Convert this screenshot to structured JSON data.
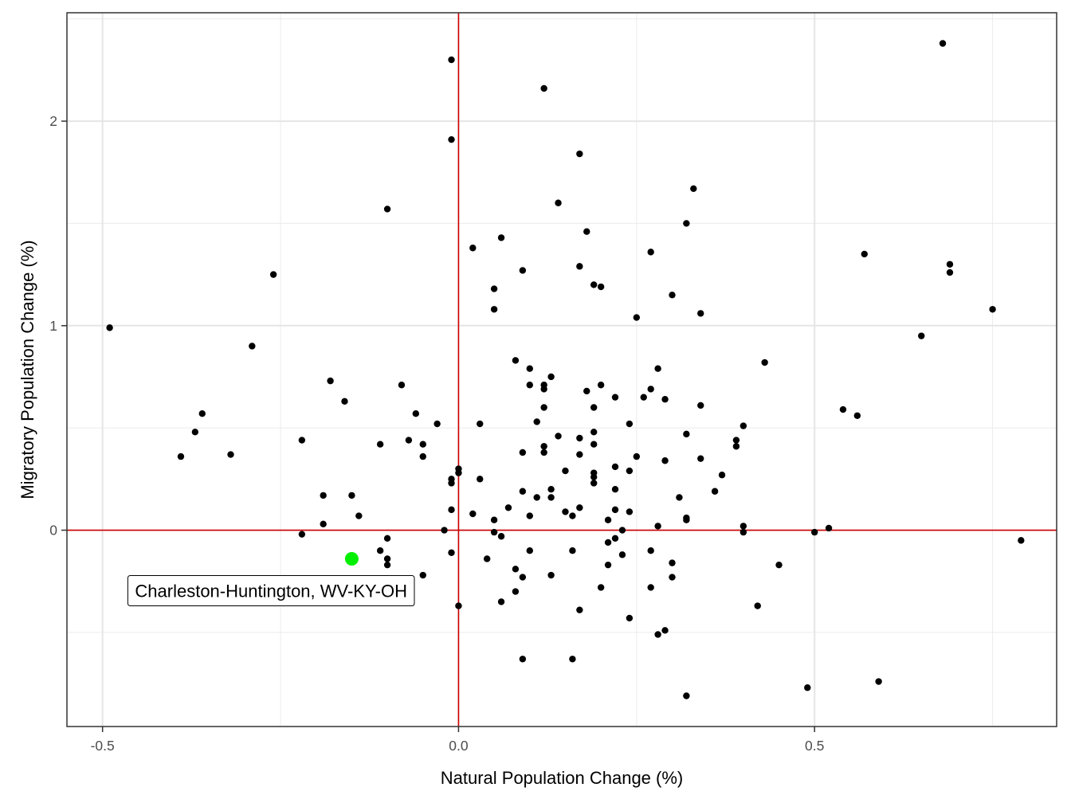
{
  "chart_data": {
    "type": "scatter",
    "xlabel": "Natural Population Change (%)",
    "ylabel": "Migratory Population Change (%)",
    "xlim": [
      -0.55,
      0.84
    ],
    "ylim": [
      -0.96,
      2.53
    ],
    "x_ticks": [
      -0.5,
      0.0,
      0.5
    ],
    "x_tick_labels": [
      "-0.5",
      "0.0",
      "0.5"
    ],
    "y_ticks": [
      0,
      1,
      2
    ],
    "y_tick_labels": [
      "0",
      "1",
      "2"
    ],
    "grid": true,
    "reference_lines": {
      "x": 0,
      "y": 0,
      "color": "#cc0000"
    },
    "point_color": "#000000",
    "highlight": {
      "label": "Charleston-Huntington, WV-KY-OH",
      "x": -0.15,
      "y": -0.14,
      "color": "#00ee00"
    },
    "points": [
      [
        -0.49,
        0.99
      ],
      [
        -0.39,
        0.36
      ],
      [
        -0.37,
        0.48
      ],
      [
        -0.36,
        0.57
      ],
      [
        -0.32,
        0.37
      ],
      [
        -0.29,
        0.9
      ],
      [
        -0.26,
        1.25
      ],
      [
        -0.22,
        0.44
      ],
      [
        -0.22,
        -0.02
      ],
      [
        -0.19,
        0.17
      ],
      [
        -0.19,
        0.03
      ],
      [
        -0.18,
        0.73
      ],
      [
        -0.16,
        0.63
      ],
      [
        -0.15,
        0.17
      ],
      [
        -0.14,
        0.07
      ],
      [
        -0.11,
        0.42
      ],
      [
        -0.11,
        -0.1
      ],
      [
        -0.1,
        -0.04
      ],
      [
        -0.1,
        -0.14
      ],
      [
        -0.1,
        -0.17
      ],
      [
        -0.1,
        1.57
      ],
      [
        -0.08,
        0.71
      ],
      [
        -0.07,
        0.44
      ],
      [
        -0.06,
        0.57
      ],
      [
        -0.05,
        0.42
      ],
      [
        -0.05,
        0.36
      ],
      [
        -0.05,
        -0.22
      ],
      [
        -0.03,
        0.52
      ],
      [
        -0.02,
        0.0
      ],
      [
        -0.01,
        0.25
      ],
      [
        -0.01,
        0.23
      ],
      [
        -0.01,
        0.1
      ],
      [
        -0.01,
        -0.11
      ],
      [
        -0.01,
        1.91
      ],
      [
        -0.01,
        2.3
      ],
      [
        0.0,
        0.3
      ],
      [
        0.0,
        0.28
      ],
      [
        0.0,
        -0.37
      ],
      [
        0.02,
        1.38
      ],
      [
        0.02,
        0.08
      ],
      [
        0.03,
        0.25
      ],
      [
        0.03,
        0.52
      ],
      [
        0.04,
        -0.14
      ],
      [
        0.05,
        1.18
      ],
      [
        0.05,
        1.08
      ],
      [
        0.05,
        0.05
      ],
      [
        0.05,
        -0.01
      ],
      [
        0.06,
        1.43
      ],
      [
        0.06,
        -0.03
      ],
      [
        0.06,
        -0.35
      ],
      [
        0.07,
        0.11
      ],
      [
        0.08,
        0.83
      ],
      [
        0.08,
        -0.19
      ],
      [
        0.08,
        -0.3
      ],
      [
        0.09,
        1.27
      ],
      [
        0.09,
        0.38
      ],
      [
        0.09,
        0.19
      ],
      [
        0.09,
        -0.23
      ],
      [
        0.09,
        -0.63
      ],
      [
        0.1,
        0.79
      ],
      [
        0.1,
        0.71
      ],
      [
        0.1,
        0.07
      ],
      [
        0.1,
        -0.1
      ],
      [
        0.11,
        0.53
      ],
      [
        0.11,
        0.16
      ],
      [
        0.12,
        2.16
      ],
      [
        0.12,
        0.71
      ],
      [
        0.12,
        0.69
      ],
      [
        0.12,
        0.6
      ],
      [
        0.12,
        0.41
      ],
      [
        0.12,
        0.38
      ],
      [
        0.13,
        0.75
      ],
      [
        0.13,
        0.2
      ],
      [
        0.13,
        0.16
      ],
      [
        0.13,
        -0.22
      ],
      [
        0.14,
        1.6
      ],
      [
        0.14,
        0.46
      ],
      [
        0.15,
        0.29
      ],
      [
        0.15,
        0.09
      ],
      [
        0.16,
        0.07
      ],
      [
        0.16,
        -0.1
      ],
      [
        0.16,
        -0.63
      ],
      [
        0.17,
        1.84
      ],
      [
        0.17,
        1.29
      ],
      [
        0.17,
        0.45
      ],
      [
        0.17,
        0.37
      ],
      [
        0.17,
        0.11
      ],
      [
        0.17,
        -0.39
      ],
      [
        0.18,
        1.46
      ],
      [
        0.18,
        0.68
      ],
      [
        0.19,
        1.2
      ],
      [
        0.19,
        0.6
      ],
      [
        0.19,
        0.48
      ],
      [
        0.19,
        0.42
      ],
      [
        0.19,
        0.28
      ],
      [
        0.19,
        0.26
      ],
      [
        0.19,
        0.23
      ],
      [
        0.2,
        1.19
      ],
      [
        0.2,
        0.71
      ],
      [
        0.2,
        -0.28
      ],
      [
        0.21,
        0.05
      ],
      [
        0.21,
        -0.06
      ],
      [
        0.21,
        -0.17
      ],
      [
        0.22,
        0.65
      ],
      [
        0.22,
        0.31
      ],
      [
        0.22,
        0.2
      ],
      [
        0.22,
        0.1
      ],
      [
        0.22,
        -0.04
      ],
      [
        0.23,
        0.0
      ],
      [
        0.23,
        -0.12
      ],
      [
        0.24,
        0.52
      ],
      [
        0.24,
        0.29
      ],
      [
        0.24,
        0.09
      ],
      [
        0.24,
        -0.43
      ],
      [
        0.25,
        1.04
      ],
      [
        0.25,
        0.36
      ],
      [
        0.26,
        0.65
      ],
      [
        0.27,
        1.36
      ],
      [
        0.27,
        0.69
      ],
      [
        0.27,
        -0.1
      ],
      [
        0.27,
        -0.28
      ],
      [
        0.28,
        0.79
      ],
      [
        0.28,
        0.02
      ],
      [
        0.28,
        -0.51
      ],
      [
        0.29,
        0.64
      ],
      [
        0.29,
        0.34
      ],
      [
        0.29,
        -0.49
      ],
      [
        0.3,
        1.15
      ],
      [
        0.3,
        -0.16
      ],
      [
        0.3,
        -0.23
      ],
      [
        0.31,
        0.16
      ],
      [
        0.32,
        1.5
      ],
      [
        0.32,
        0.47
      ],
      [
        0.32,
        0.06
      ],
      [
        0.32,
        0.05
      ],
      [
        0.32,
        -0.81
      ],
      [
        0.33,
        1.67
      ],
      [
        0.34,
        1.06
      ],
      [
        0.34,
        0.61
      ],
      [
        0.34,
        0.35
      ],
      [
        0.36,
        0.19
      ],
      [
        0.37,
        0.27
      ],
      [
        0.39,
        0.44
      ],
      [
        0.39,
        0.41
      ],
      [
        0.4,
        0.51
      ],
      [
        0.4,
        0.02
      ],
      [
        0.4,
        -0.01
      ],
      [
        0.42,
        -0.37
      ],
      [
        0.43,
        0.82
      ],
      [
        0.45,
        -0.17
      ],
      [
        0.49,
        -0.77
      ],
      [
        0.5,
        -0.01
      ],
      [
        0.52,
        0.01
      ],
      [
        0.54,
        0.59
      ],
      [
        0.56,
        0.56
      ],
      [
        0.57,
        1.35
      ],
      [
        0.59,
        -0.74
      ],
      [
        0.65,
        0.95
      ],
      [
        0.68,
        2.38
      ],
      [
        0.69,
        1.3
      ],
      [
        0.69,
        1.26
      ],
      [
        0.75,
        1.08
      ],
      [
        0.79,
        -0.05
      ]
    ]
  }
}
